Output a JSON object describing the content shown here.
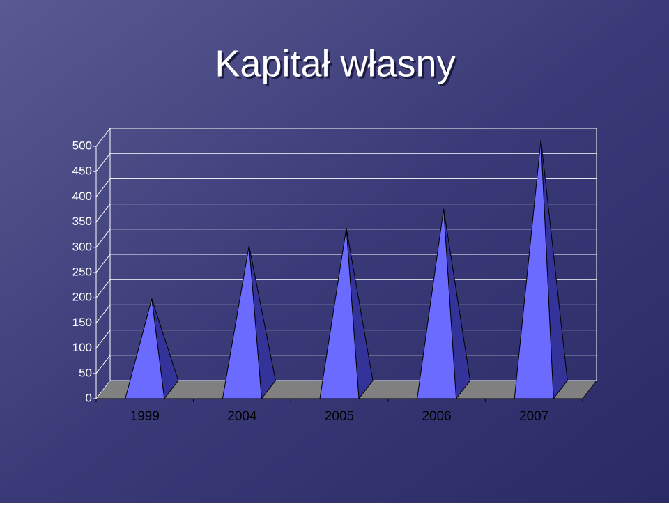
{
  "chart_data": {
    "type": "pyramid",
    "title": "Kapitał własny",
    "categories": [
      "1999",
      "2004",
      "2005",
      "2006",
      "2007"
    ],
    "values": [
      180,
      285,
      320,
      358,
      495
    ],
    "color": "#6b6bff",
    "ylim": [
      0,
      500
    ],
    "yticks": [
      0,
      50,
      100,
      150,
      200,
      250,
      300,
      350,
      400,
      450,
      500
    ],
    "grid": true
  }
}
